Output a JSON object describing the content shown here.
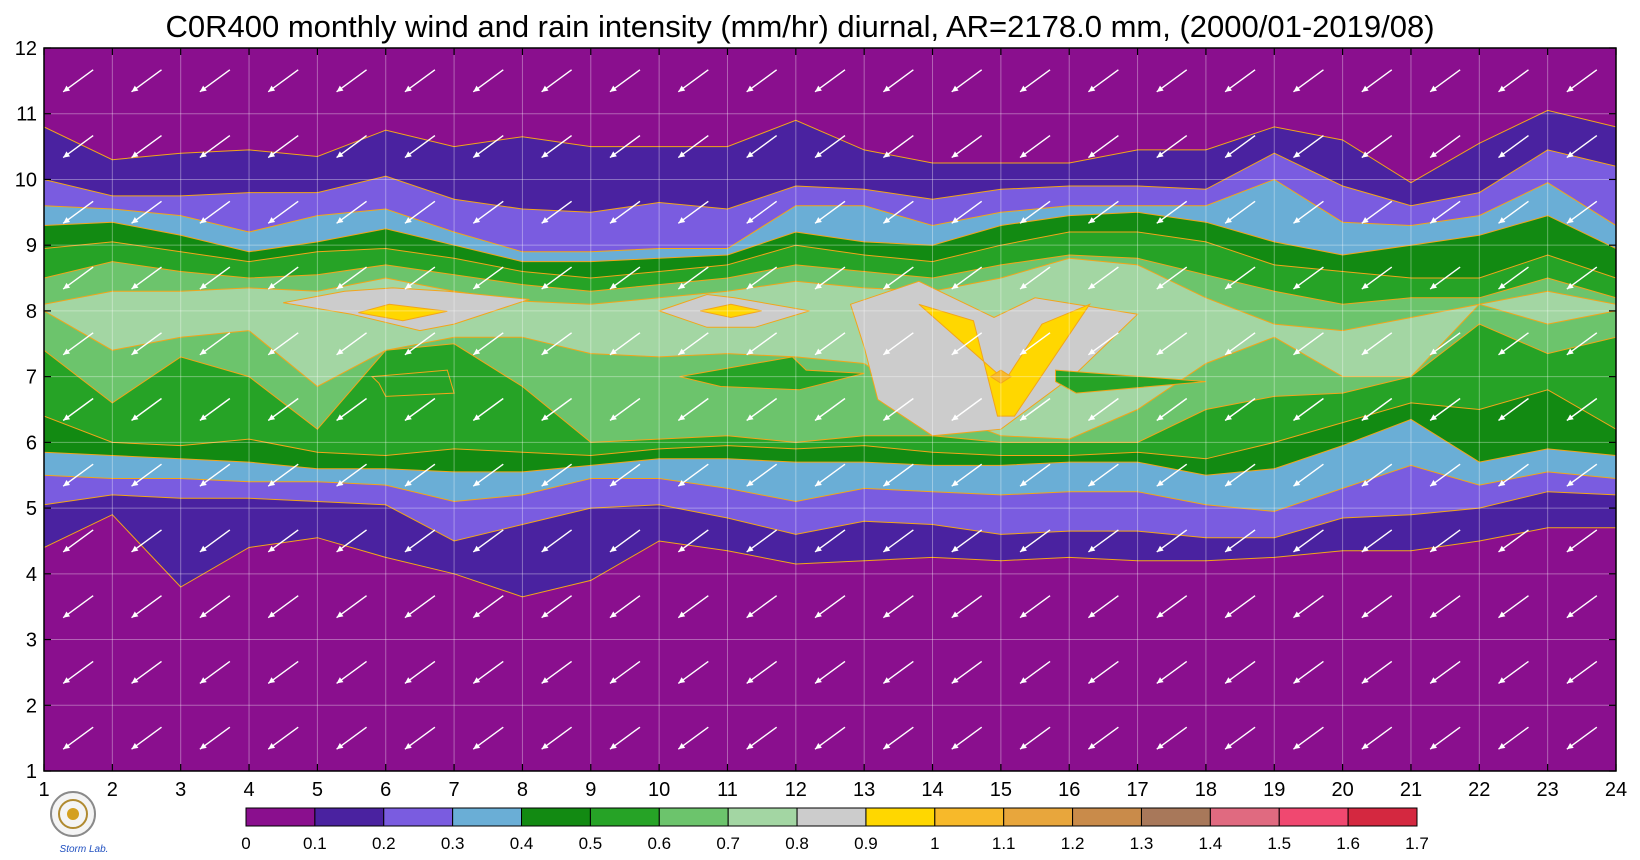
{
  "chart_data": {
    "type": "heatmap",
    "title": "C0R400 monthly wind and rain intensity (mm/hr) diurnal, AR=2178.0 mm, (2000/01-2019/08)",
    "xlabel": "",
    "ylabel": "",
    "x_ticks": [
      "1",
      "2",
      "3",
      "4",
      "5",
      "6",
      "7",
      "8",
      "9",
      "10",
      "11",
      "12",
      "13",
      "14",
      "15",
      "16",
      "17",
      "18",
      "19",
      "20",
      "21",
      "22",
      "23",
      "24"
    ],
    "y_ticks": [
      "1",
      "2",
      "3",
      "4",
      "5",
      "6",
      "7",
      "8",
      "9",
      "10",
      "11",
      "12"
    ],
    "xlim": [
      1,
      24
    ],
    "ylim": [
      1,
      12
    ],
    "grid": true,
    "colorbar": {
      "levels": [
        0,
        0.1,
        0.2,
        0.3,
        0.4,
        0.5,
        0.6,
        0.7,
        0.8,
        0.9,
        1,
        1.1,
        1.2,
        1.3,
        1.4,
        1.5,
        1.6,
        1.7
      ],
      "labels": [
        "0",
        "0.1",
        "0.2",
        "0.3",
        "0.4",
        "0.5",
        "0.6",
        "0.7",
        "0.8",
        "0.9",
        "1",
        "1.1",
        "1.2",
        "1.3",
        "1.4",
        "1.5",
        "1.6",
        "1.7"
      ],
      "colors": [
        "#8a0f8e",
        "#4a22a0",
        "#7a5ce0",
        "#6aaed6",
        "#128a12",
        "#26a326",
        "#6cc46c",
        "#a3d6a3",
        "#cccccc",
        "#ffd700",
        "#f7b92a",
        "#e8a63c",
        "#c98b4a",
        "#a8785a",
        "#e06a80",
        "#f04870",
        "#d42840"
      ]
    },
    "level_bands": [
      {
        "level": 0.1,
        "lower": [
          4.4,
          4.9,
          3.8,
          4.4,
          4.55,
          4.25,
          4.0,
          3.65,
          3.9,
          4.5,
          4.35,
          4.15,
          4.2,
          4.25,
          4.2,
          4.25,
          4.2,
          4.2,
          4.25,
          4.35,
          4.35,
          4.5,
          4.7,
          4.7
        ],
        "upper": [
          10.8,
          10.3,
          10.4,
          10.45,
          10.35,
          10.75,
          10.5,
          10.65,
          10.5,
          10.5,
          10.5,
          10.9,
          10.45,
          10.25,
          10.25,
          10.25,
          10.45,
          10.45,
          10.8,
          10.6,
          9.95,
          10.55,
          11.05,
          10.8
        ]
      },
      {
        "level": 0.2,
        "lower": [
          5.05,
          5.2,
          5.15,
          5.15,
          5.1,
          5.05,
          4.5,
          4.75,
          5.0,
          5.05,
          4.85,
          4.6,
          4.8,
          4.75,
          4.6,
          4.65,
          4.65,
          4.55,
          4.55,
          4.85,
          4.9,
          5.0,
          5.25,
          5.2
        ],
        "upper": [
          10.0,
          9.75,
          9.75,
          9.8,
          9.8,
          10.05,
          9.7,
          9.55,
          9.5,
          9.65,
          9.55,
          9.9,
          9.85,
          9.7,
          9.85,
          9.9,
          9.9,
          9.85,
          10.4,
          9.9,
          9.6,
          9.8,
          10.45,
          10.2
        ]
      },
      {
        "level": 0.3,
        "lower": [
          5.5,
          5.45,
          5.45,
          5.4,
          5.4,
          5.35,
          5.1,
          5.2,
          5.45,
          5.45,
          5.3,
          5.1,
          5.3,
          5.25,
          5.2,
          5.25,
          5.25,
          5.05,
          4.95,
          5.3,
          5.65,
          5.35,
          5.55,
          5.45
        ]
      },
      {
        "level": 0.3,
        "upper": [
          9.6,
          9.55,
          9.45,
          9.2,
          9.45,
          9.55,
          9.2,
          8.9,
          8.9,
          8.95,
          8.95,
          9.6,
          9.6,
          9.3,
          9.5,
          9.6,
          9.6,
          9.6,
          10.0,
          9.35,
          9.3,
          9.45,
          9.95,
          9.3
        ]
      },
      {
        "level": 0.4,
        "lower": [
          5.85,
          5.8,
          5.75,
          5.7,
          5.6,
          5.6,
          5.55,
          5.55,
          5.65,
          5.75,
          5.75,
          5.7,
          5.7,
          5.65,
          5.65,
          5.7,
          5.7,
          5.5,
          5.6,
          5.95,
          6.35,
          5.7,
          5.9,
          5.8
        ],
        "upper": [
          9.3,
          9.35,
          9.15,
          8.9,
          9.05,
          9.25,
          9.0,
          8.75,
          8.75,
          8.8,
          8.85,
          9.2,
          9.05,
          9.0,
          9.3,
          9.45,
          9.5,
          9.35,
          9.05,
          8.85,
          9.0,
          9.15,
          9.45,
          8.95
        ]
      },
      {
        "level": 0.5,
        "lower": [
          6.4,
          6.0,
          5.95,
          6.05,
          5.85,
          5.8,
          5.9,
          5.85,
          5.8,
          5.9,
          5.95,
          5.9,
          5.95,
          5.85,
          5.8,
          5.8,
          5.85,
          5.75,
          6.0,
          6.3,
          6.6,
          6.5,
          6.8,
          6.2
        ],
        "upper": [
          8.95,
          9.05,
          8.9,
          8.75,
          8.9,
          8.95,
          8.8,
          8.6,
          8.5,
          8.6,
          8.7,
          9.0,
          8.85,
          8.75,
          9.0,
          9.2,
          9.2,
          9.05,
          8.7,
          8.6,
          8.5,
          8.5,
          8.85,
          8.5
        ]
      },
      {
        "level": 0.6,
        "lower": [
          7.4,
          6.6,
          7.3,
          7.0,
          6.2,
          7.4,
          7.5,
          6.85,
          6.0,
          6.05,
          6.1,
          6.0,
          6.1,
          6.1,
          6.0,
          6.0,
          6.0,
          6.5,
          6.7,
          6.75,
          7.0,
          7.8,
          7.35,
          7.6
        ],
        "upper": [
          8.5,
          8.75,
          8.6,
          8.5,
          8.55,
          8.7,
          8.55,
          8.4,
          8.3,
          8.4,
          8.5,
          8.7,
          8.6,
          8.5,
          8.7,
          8.85,
          8.8,
          8.55,
          8.3,
          8.1,
          8.2,
          8.2,
          8.5,
          8.2
        ]
      },
      {
        "level": 0.7,
        "lower": [
          8.0,
          7.4,
          7.6,
          7.7,
          6.85,
          7.4,
          7.6,
          7.6,
          7.35,
          7.3,
          7.35,
          7.3,
          7.2,
          6.5,
          6.1,
          6.05,
          6.5,
          7.2,
          7.6,
          7.0,
          7.0,
          8.1,
          7.8,
          8.0
        ],
        "upper": [
          8.1,
          8.3,
          8.3,
          8.35,
          8.3,
          8.5,
          8.3,
          8.15,
          8.1,
          8.2,
          8.3,
          8.45,
          8.35,
          8.3,
          8.5,
          8.8,
          8.7,
          8.2,
          7.8,
          7.7,
          7.9,
          8.1,
          8.3,
          8.1
        ]
      }
    ],
    "level_polygons": [
      {
        "level": 0.8,
        "shape": "lobe-5-8",
        "x_range": [
          4.5,
          8.1
        ],
        "y_range": [
          7.7,
          8.35
        ]
      },
      {
        "level": 0.8,
        "shape": "lobe-10-12",
        "x_range": [
          10.0,
          12.2
        ],
        "y_range": [
          7.75,
          8.25
        ]
      },
      {
        "level": 0.8,
        "shape": "lobe-13-17",
        "x_range": [
          12.8,
          17.0
        ],
        "y_range": [
          6.05,
          8.45
        ]
      },
      {
        "level": 0.9,
        "shape": "spot-6",
        "x_range": [
          5.6,
          6.9
        ],
        "y_range": [
          7.85,
          8.1
        ]
      },
      {
        "level": 0.9,
        "shape": "spot-11",
        "x_range": [
          10.6,
          11.5
        ],
        "y_range": [
          7.9,
          8.1
        ]
      },
      {
        "level": 0.9,
        "shape": "v-15",
        "x_range": [
          13.8,
          16.3
        ],
        "y_range": [
          6.4,
          8.1
        ]
      },
      {
        "level": 1.0,
        "shape": "v-core-15",
        "x_range": [
          14.85,
          15.15
        ],
        "y_range": [
          6.9,
          7.1
        ]
      },
      {
        "level": 0.5,
        "shape": "island-6",
        "x_range": [
          5.8,
          7.0
        ],
        "y_range": [
          6.7,
          7.1
        ]
      },
      {
        "level": 0.5,
        "shape": "island-12",
        "x_range": [
          10.3,
          13.0
        ],
        "y_range": [
          6.8,
          7.3
        ]
      },
      {
        "level": 0.5,
        "shape": "island-16",
        "x_range": [
          15.8,
          18.0
        ],
        "y_range": [
          6.75,
          7.1
        ]
      }
    ],
    "wind": {
      "direction": "southwest",
      "x_step": 1,
      "y_step": 1
    }
  },
  "logo": {
    "text": "Storm Lab."
  }
}
